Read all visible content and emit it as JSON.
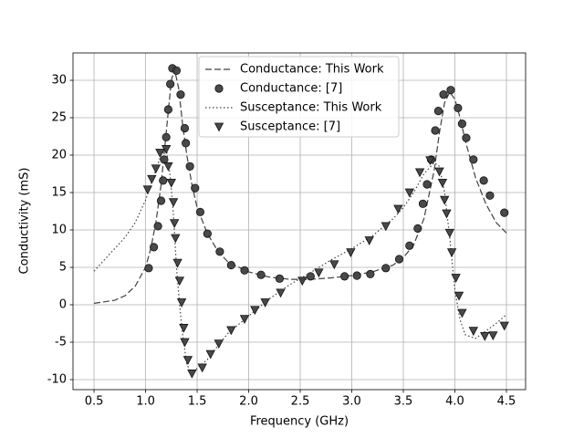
{
  "chart_data": {
    "type": "line",
    "xlabel": "Frequency (GHz)",
    "ylabel": "Conductivity (mS)",
    "xlim": [
      0.296,
      4.686
    ],
    "ylim": [
      -11.34,
      33.66
    ],
    "xticks": [
      0.5,
      {
        "value": 1,
        "label": "1.0"
      },
      1.5,
      {
        "value": 2,
        "label": "2.0"
      },
      2.5,
      {
        "value": 3,
        "label": "3.0"
      },
      3.5,
      {
        "value": 4,
        "label": "4.0"
      },
      4.5
    ],
    "yticks": [
      -10,
      -5,
      0,
      5,
      10,
      15,
      20,
      25,
      30
    ],
    "grid": true,
    "legend": "upper center",
    "series": [
      {
        "name": "Conductance: This Work",
        "color": "#404040",
        "linestyle": "dashed",
        "x": [
          0.5,
          0.7,
          0.8,
          0.9,
          1.0,
          1.05,
          1.1,
          1.15,
          1.2,
          1.25,
          1.28,
          1.32,
          1.36,
          1.4,
          1.45,
          1.5,
          1.6,
          1.7,
          1.8,
          2.0,
          2.2,
          2.4,
          2.6,
          2.8,
          3.0,
          3.2,
          3.4,
          3.5,
          3.6,
          3.7,
          3.8,
          3.85,
          3.9,
          3.95,
          4.0,
          4.05,
          4.1,
          4.2,
          4.3,
          4.4,
          4.5
        ],
        "values": [
          0.2,
          0.6,
          1.2,
          2.5,
          5,
          7.5,
          11,
          16,
          23,
          30,
          31.5,
          29,
          24,
          20,
          16,
          13,
          9.5,
          7.2,
          5.7,
          4.4,
          3.7,
          3.4,
          3.4,
          3.6,
          3.9,
          4.4,
          5.3,
          6.3,
          8,
          11.5,
          18,
          23,
          27,
          28.4,
          27.5,
          25,
          22,
          17,
          13.5,
          11,
          9.6
        ]
      },
      {
        "name": "Conductance: [7]",
        "color": "#404040",
        "marker": "o",
        "x": [
          1.03,
          1.08,
          1.12,
          1.15,
          1.17,
          1.18,
          1.2,
          1.22,
          1.24,
          1.26,
          1.3,
          1.34,
          1.38,
          1.39,
          1.43,
          1.48,
          1.53,
          1.6,
          1.72,
          1.83,
          1.96,
          2.12,
          2.3,
          2.6,
          2.93,
          3.05,
          3.18,
          3.33,
          3.46,
          3.56,
          3.64,
          3.69,
          3.73,
          3.77,
          3.81,
          3.84,
          3.89,
          3.96,
          4.03,
          4.07,
          4.11,
          4.18,
          4.28,
          4.34,
          4.48
        ],
        "values": [
          4.9,
          7.7,
          10.5,
          13.9,
          16.6,
          19.4,
          22.4,
          26.1,
          29.5,
          31.6,
          31.3,
          28.1,
          23.6,
          21.6,
          18.5,
          15.6,
          12.4,
          9.5,
          7.1,
          5.3,
          4.6,
          4,
          3.5,
          3.8,
          3.8,
          3.9,
          4.1,
          4.9,
          6.1,
          7.9,
          10.2,
          13.5,
          16.1,
          19.4,
          23.3,
          25.9,
          28.1,
          28.7,
          26.3,
          24.2,
          22.3,
          19.4,
          16.6,
          14.6,
          12.3
        ]
      },
      {
        "name": "Susceptance: This Work",
        "color": "#404040",
        "linestyle": "dotted",
        "x": [
          0.5,
          0.6,
          0.7,
          0.8,
          0.9,
          1.0,
          1.1,
          1.15,
          1.2,
          1.24,
          1.27,
          1.3,
          1.33,
          1.36,
          1.4,
          1.45,
          1.5,
          1.6,
          1.7,
          1.8,
          2.0,
          2.2,
          2.4,
          2.6,
          2.8,
          3.0,
          3.2,
          3.4,
          3.5,
          3.6,
          3.7,
          3.8,
          3.85,
          3.9,
          3.95,
          4.0,
          4.05,
          4.1,
          4.2,
          4.3,
          4.4,
          4.5
        ],
        "values": [
          4.5,
          6,
          7.5,
          9,
          11,
          14,
          18,
          20,
          21,
          17,
          12,
          5,
          0,
          -4,
          -8,
          -9.2,
          -8.5,
          -7.3,
          -5.5,
          -3.8,
          -1.5,
          0.8,
          2.7,
          4.3,
          6,
          7.5,
          9.2,
          11.5,
          13,
          15,
          17.5,
          19,
          18.5,
          15,
          9,
          2,
          -2,
          -4,
          -4.5,
          -3.5,
          -2.5,
          -1.3
        ]
      },
      {
        "name": "Susceptance: [7]",
        "color": "#404040",
        "marker": "v",
        "x": [
          1.02,
          1.06,
          1.1,
          1.14,
          1.2,
          1.22,
          1.25,
          1.27,
          1.28,
          1.29,
          1.31,
          1.33,
          1.35,
          1.37,
          1.38,
          1.41,
          1.45,
          1.55,
          1.63,
          1.71,
          1.83,
          1.96,
          2.06,
          2.16,
          2.31,
          2.52,
          2.68,
          2.83,
          2.99,
          3.17,
          3.33,
          3.45,
          3.56,
          3.66,
          3.76,
          3.85,
          3.88,
          3.9,
          3.92,
          3.95,
          3.97,
          4.01,
          4.04,
          4.07,
          4.18,
          4.29,
          4.37,
          4.48
        ],
        "values": [
          15.4,
          16.8,
          18.2,
          20.3,
          20.8,
          18.5,
          16.3,
          13.7,
          10.9,
          8.9,
          5.6,
          3.2,
          0.3,
          -3.1,
          -5,
          -7.4,
          -9.2,
          -8.4,
          -6.6,
          -5.2,
          -3.4,
          -1.9,
          -0.7,
          0.3,
          1.6,
          3.2,
          4.3,
          5.4,
          7,
          8.6,
          10.5,
          12.8,
          15,
          17.7,
          19.3,
          17.8,
          16.3,
          14,
          12.2,
          9.6,
          7,
          3.6,
          1.2,
          -1.1,
          -3.5,
          -4.2,
          -4.1,
          -2.8
        ]
      }
    ]
  }
}
